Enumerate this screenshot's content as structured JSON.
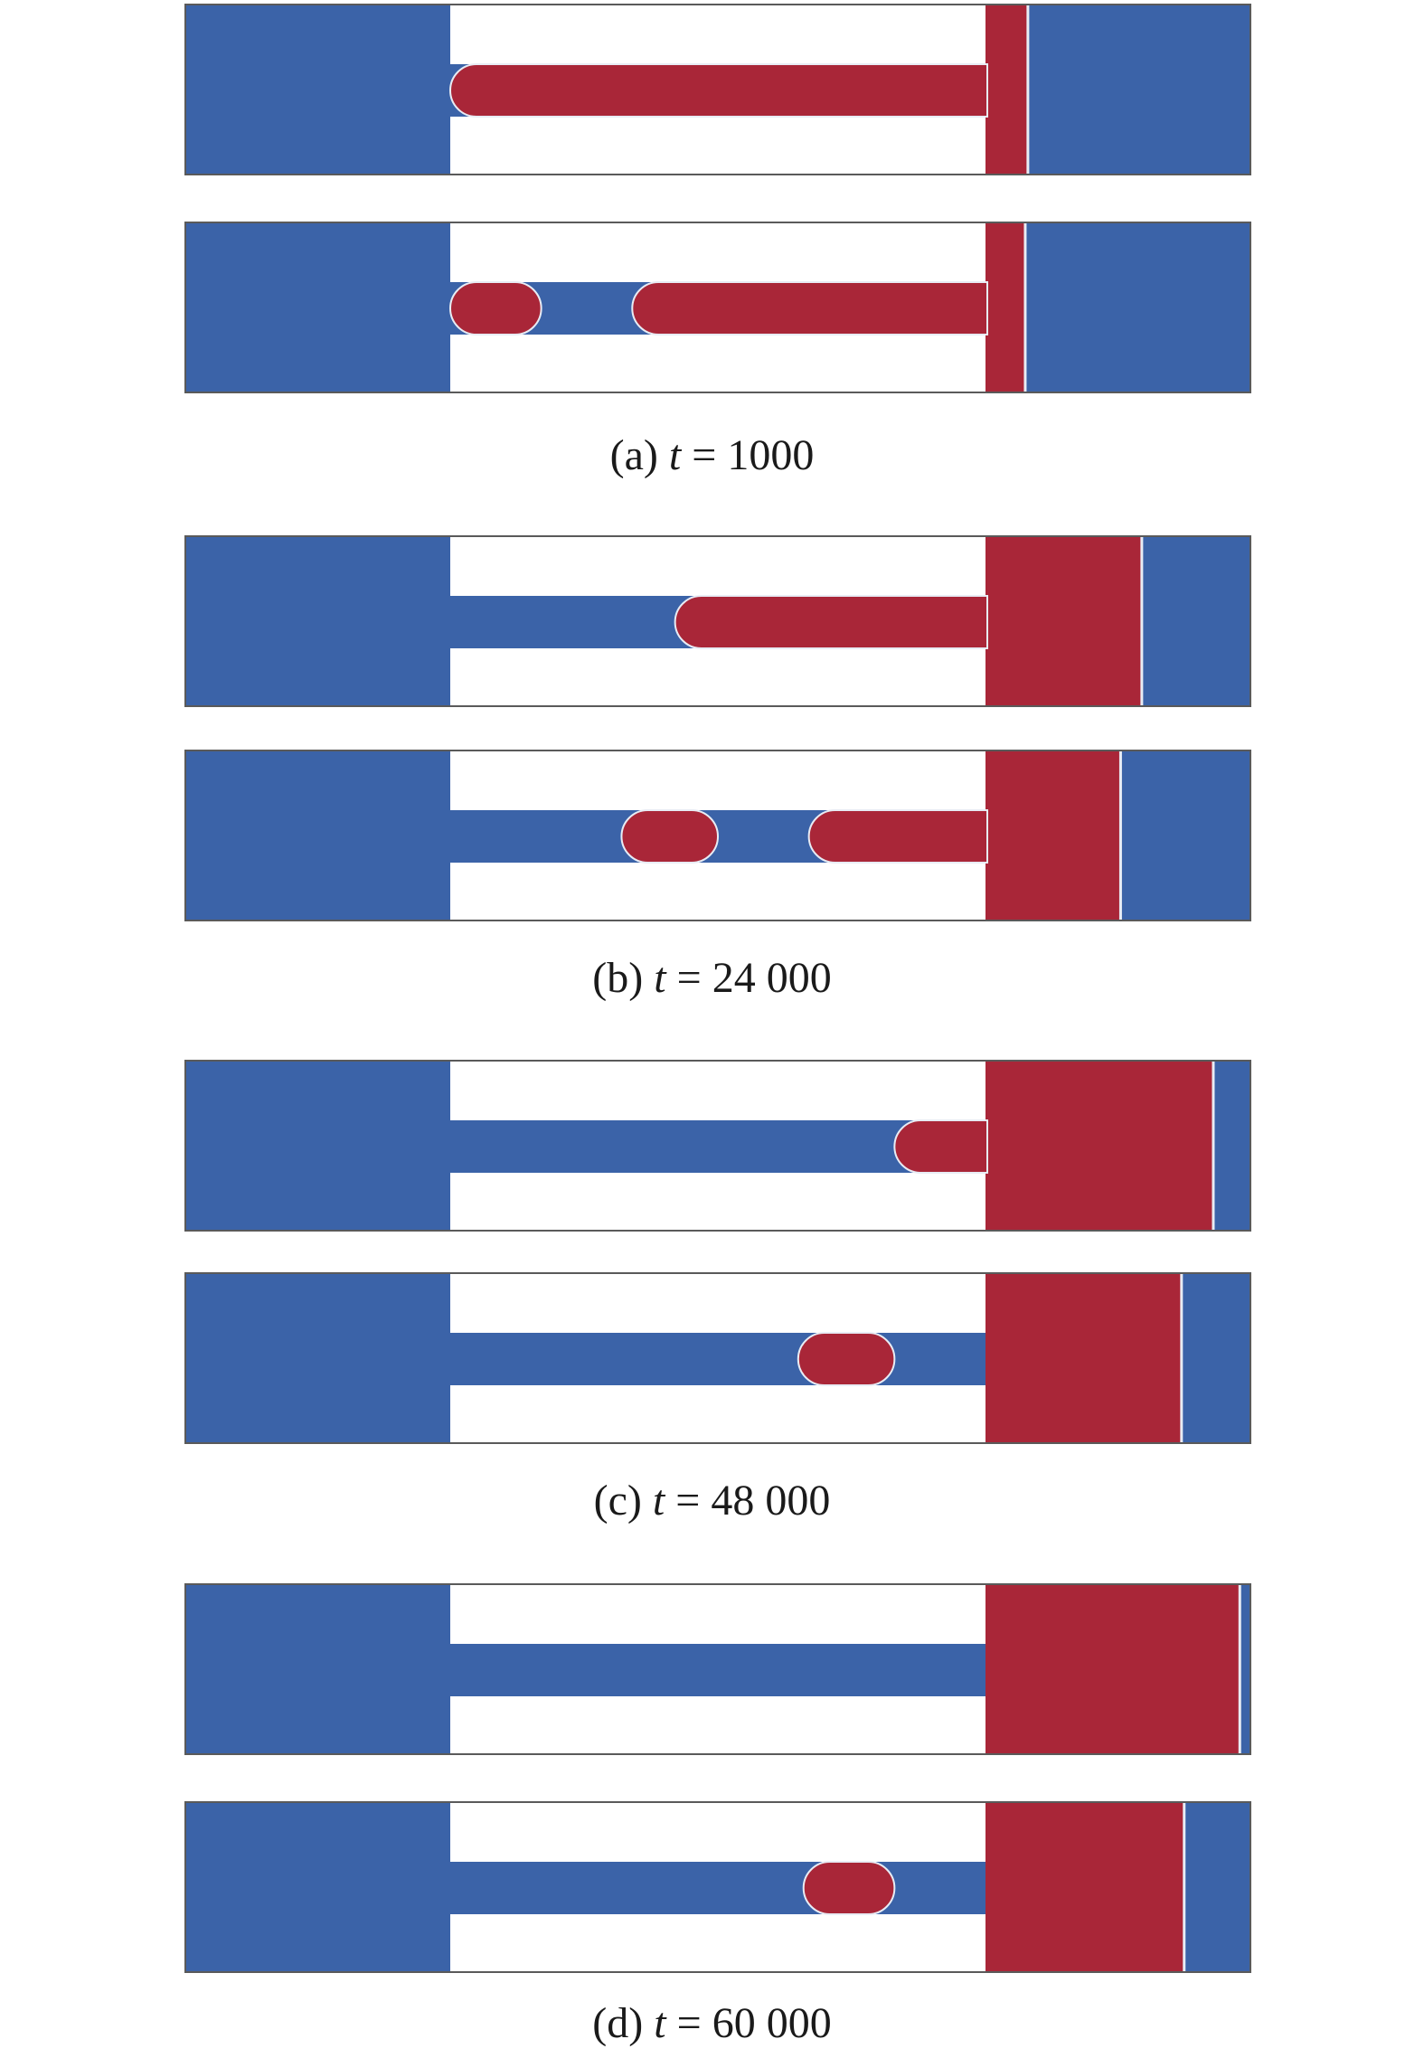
{
  "colors": {
    "wetting_fluid": "#3b63a8",
    "nonwetting_fluid": "#a92638",
    "solid": "#ffffff",
    "interface": "#e8ecf4",
    "frame": "#5a5a5a"
  },
  "panels": [
    {
      "caption": {
        "label": "(a)",
        "var": "t",
        "eq": "=",
        "value": "1000"
      },
      "rows": [
        {
          "reservoir_fill": 0.16,
          "channel": [
            {
              "fluid": "nonwetting",
              "from": 0.0,
              "to": 1.0,
              "left_cap": true
            }
          ]
        },
        {
          "reservoir_fill": 0.15,
          "channel": [
            {
              "fluid": "nonwetting",
              "from": 0.0,
              "to": 0.17,
              "left_cap": true,
              "right_cap": true
            },
            {
              "fluid": "nonwetting",
              "from": 0.34,
              "to": 1.0,
              "left_cap": true
            }
          ]
        }
      ]
    },
    {
      "caption": {
        "label": "(b)",
        "var": "t",
        "eq": "=",
        "value": "24 000"
      },
      "rows": [
        {
          "reservoir_fill": 0.59,
          "channel": [
            {
              "fluid": "nonwetting",
              "from": 0.42,
              "to": 1.0,
              "left_cap": true
            }
          ]
        },
        {
          "reservoir_fill": 0.51,
          "channel": [
            {
              "fluid": "nonwetting",
              "from": 0.32,
              "to": 0.5,
              "left_cap": true,
              "right_cap": true
            },
            {
              "fluid": "nonwetting",
              "from": 0.67,
              "to": 1.0,
              "left_cap": true
            }
          ]
        }
      ]
    },
    {
      "caption": {
        "label": "(c)",
        "var": "t",
        "eq": "=",
        "value": "48 000"
      },
      "rows": [
        {
          "reservoir_fill": 0.86,
          "channel": [
            {
              "fluid": "nonwetting",
              "from": 0.83,
              "to": 1.0,
              "left_cap": true
            }
          ]
        },
        {
          "reservoir_fill": 0.74,
          "channel": [
            {
              "fluid": "nonwetting",
              "from": 0.65,
              "to": 0.83,
              "left_cap": true,
              "right_cap": true
            }
          ]
        }
      ]
    },
    {
      "caption": {
        "label": "(d)",
        "var": "t",
        "eq": "=",
        "value": "60 000"
      },
      "rows": [
        {
          "reservoir_fill": 0.96,
          "channel": []
        },
        {
          "reservoir_fill": 0.75,
          "channel": [
            {
              "fluid": "nonwetting",
              "from": 0.66,
              "to": 0.83,
              "left_cap": true,
              "right_cap": true
            }
          ]
        }
      ]
    }
  ]
}
